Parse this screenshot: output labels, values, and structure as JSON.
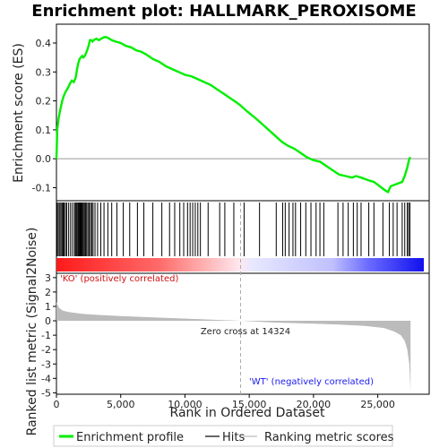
{
  "chart_data": {
    "type": "line",
    "title": "Enrichment plot: HALLMARK_PEROXISOME",
    "xlabel": "Rank in Ordered Dataset",
    "xlim": [
      0,
      29000
    ],
    "x_ticks": [
      0,
      5000,
      10000,
      15000,
      20000,
      25000
    ],
    "x_tick_labels": [
      "0",
      "5,000",
      "10,000",
      "15,000",
      "20,000",
      "25,000"
    ],
    "es_panel": {
      "ylabel": "Enrichment score (ES)",
      "ylim": [
        -0.145,
        0.465
      ],
      "y_ticks": [
        -0.1,
        0.0,
        0.1,
        0.2,
        0.3,
        0.4
      ],
      "y_tick_labels": [
        "-0.1",
        "0.0",
        "0.1",
        "0.2",
        "0.3",
        "0.4"
      ],
      "line_color": "#00ee00",
      "zero_line_color": "#999999",
      "series": [
        {
          "x": [
            0,
            60,
            150,
            250,
            350,
            450,
            550,
            650,
            750,
            900,
            1050,
            1200,
            1350,
            1500,
            1600,
            1700,
            1800,
            1900,
            2000,
            2100,
            2200,
            2350,
            2500,
            2600,
            2700,
            2800,
            2900,
            3100,
            3300,
            3500,
            3700,
            3900,
            4100,
            4300,
            4600,
            5000,
            5400,
            5800,
            6200,
            6600,
            7000,
            7500,
            8000,
            8500,
            9000,
            9500,
            10000,
            10500,
            11000,
            11500,
            12000,
            12500,
            13000,
            13500,
            14000,
            14300,
            14800,
            15500,
            16000,
            16500,
            17000,
            17500,
            18000,
            18500,
            19000,
            19500,
            20000,
            20500,
            21000,
            21500,
            22000,
            22500,
            23000,
            23300,
            23700,
            24000,
            24300,
            24700,
            25000,
            25300,
            25600,
            25800,
            26000,
            26300,
            26600,
            26900,
            27100,
            27300,
            27450,
            27550
          ],
          "y": [
            0.0,
            0.1,
            0.135,
            0.16,
            0.18,
            0.2,
            0.215,
            0.225,
            0.235,
            0.245,
            0.26,
            0.27,
            0.265,
            0.28,
            0.31,
            0.33,
            0.345,
            0.35,
            0.355,
            0.35,
            0.355,
            0.37,
            0.39,
            0.41,
            0.41,
            0.405,
            0.41,
            0.415,
            0.41,
            0.415,
            0.42,
            0.42,
            0.415,
            0.41,
            0.405,
            0.4,
            0.39,
            0.385,
            0.375,
            0.37,
            0.36,
            0.345,
            0.335,
            0.32,
            0.31,
            0.3,
            0.29,
            0.285,
            0.275,
            0.265,
            0.255,
            0.24,
            0.225,
            0.21,
            0.195,
            0.185,
            0.165,
            0.14,
            0.12,
            0.1,
            0.08,
            0.06,
            0.045,
            0.035,
            0.02,
            0.005,
            -0.005,
            -0.01,
            -0.025,
            -0.04,
            -0.055,
            -0.06,
            -0.065,
            -0.06,
            -0.065,
            -0.07,
            -0.075,
            -0.08,
            -0.09,
            -0.1,
            -0.11,
            -0.115,
            -0.095,
            -0.09,
            -0.085,
            -0.08,
            -0.06,
            -0.03,
            0.0,
            0.005
          ]
        }
      ]
    },
    "hits_panel": {
      "hit_ranks": [
        60,
        150,
        260,
        350,
        440,
        520,
        600,
        700,
        800,
        950,
        1100,
        1250,
        1400,
        1480,
        1550,
        1620,
        1700,
        1760,
        1820,
        1880,
        1950,
        2020,
        2100,
        2180,
        2260,
        2350,
        2450,
        2550,
        2650,
        2750,
        2850,
        3000,
        3200,
        3450,
        3700,
        4000,
        4300,
        4700,
        5200,
        5700,
        6300,
        6800,
        7500,
        8200,
        8800,
        9200,
        9600,
        9900,
        10200,
        10400,
        10600,
        10800,
        11000,
        11200,
        11800,
        12700,
        13100,
        13800,
        14600,
        15800,
        17100,
        17600,
        17800,
        18100,
        18400,
        18600,
        19000,
        19400,
        19800,
        20200,
        20500,
        20800,
        21900,
        22300,
        22700,
        23100,
        23400,
        23700,
        24300,
        24700,
        25400,
        25900,
        26200,
        26500,
        26900,
        27100,
        27300,
        27400,
        27500
      ]
    },
    "ranked_metric_panel": {
      "ylabel": "Ranked list metric (Signal2Noise)",
      "ylim": [
        -5.1,
        3.3
      ],
      "y_ticks": [
        -5,
        -4,
        -3,
        -2,
        -1,
        0,
        1,
        2,
        3
      ],
      "y_tick_labels": [
        "-5",
        "-4",
        "-3",
        "-2",
        "-1",
        "0",
        "1",
        "2",
        "3"
      ],
      "metric_x": [
        0,
        200,
        500,
        1000,
        2000,
        3000,
        5000,
        8000,
        11000,
        14324,
        17000,
        20000,
        22000,
        24000,
        25500,
        26300,
        26800,
        27100,
        27300,
        27450,
        27550
      ],
      "metric_y": [
        1.3,
        0.9,
        0.7,
        0.6,
        0.48,
        0.42,
        0.33,
        0.22,
        0.12,
        0.0,
        -0.12,
        -0.2,
        -0.26,
        -0.35,
        -0.5,
        -0.75,
        -1.0,
        -1.4,
        -2.0,
        -3.0,
        -4.9
      ],
      "zero_cross_rank": 14324,
      "zero_cross_label": "Zero cross at 14324",
      "positive_label": "'KO' (positively correlated)",
      "negative_label": "'WT' (negatively correlated)",
      "fill_color": "#bbbbbb"
    },
    "legend": {
      "placement": "bottom",
      "items": [
        {
          "label": "Enrichment profile",
          "color": "#00ee00",
          "kind": "line-thick"
        },
        {
          "label": "Hits",
          "color": "#000000",
          "kind": "line-thin"
        },
        {
          "label": "Ranking metric scores",
          "color": "#bbbbbb",
          "kind": "line-thin"
        }
      ]
    }
  }
}
